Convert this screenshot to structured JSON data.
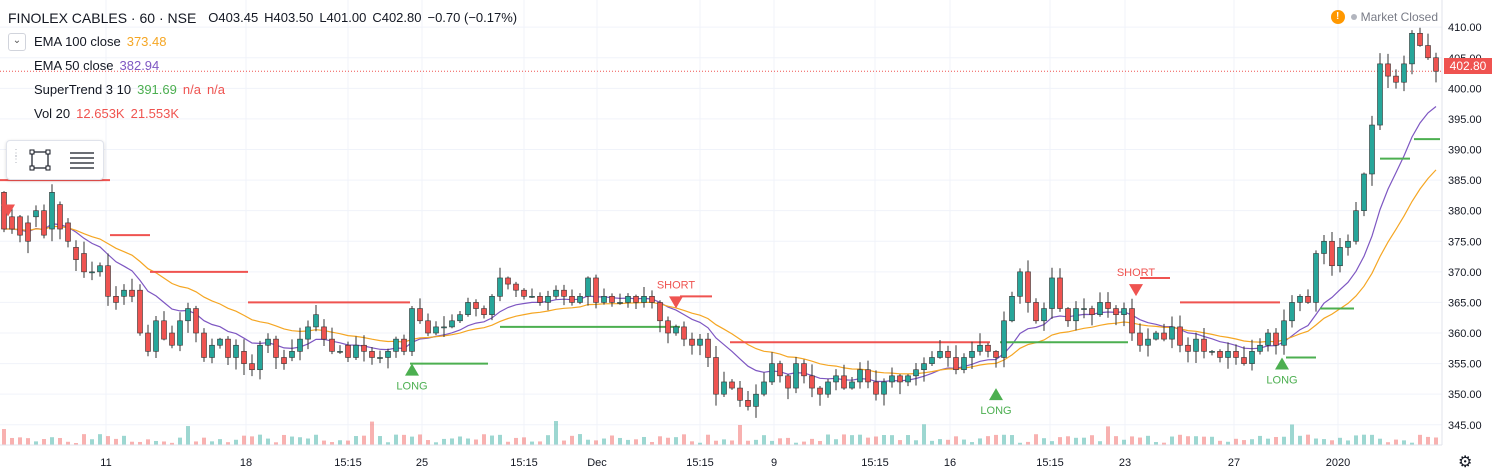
{
  "header": {
    "symbol": "FINOLEX CABLES · 60 · NSE",
    "open": "O403.45",
    "high": "H403.50",
    "low": "L401.00",
    "close": "C402.80",
    "change": "−0.70 (−0.17%)"
  },
  "indicators": [
    {
      "name": "EMA 100 close",
      "values": [
        "373.48"
      ],
      "color": "#f5a623"
    },
    {
      "name": "EMA 50 close",
      "values": [
        "382.94"
      ],
      "color": "#7e57c2"
    },
    {
      "name": "SuperTrend 3 10",
      "values": [
        "391.69",
        "n/a",
        "n/a"
      ],
      "colors": [
        "#4caf50",
        "#ef5350",
        "#ef5350"
      ]
    },
    {
      "name": "Vol 20",
      "values": [
        "12.653K",
        "21.553K"
      ],
      "colors": [
        "#ef5350",
        "#ef5350"
      ]
    }
  ],
  "market_status": "Market Closed",
  "last_price": "402.80",
  "chart_data": {
    "type": "candlestick",
    "y_ticks": [
      "410.00",
      "405.00",
      "400.00",
      "395.00",
      "390.00",
      "385.00",
      "380.00",
      "375.00",
      "370.00",
      "365.00",
      "360.00",
      "355.00",
      "350.00",
      "345.00"
    ],
    "ylim": [
      343,
      411.5
    ],
    "x_ticks": [
      "11",
      "18",
      "15:15",
      "25",
      "15:15",
      "Dec",
      "15:15",
      "9",
      "15:15",
      "16",
      "15:15",
      "23",
      "27",
      "2020"
    ],
    "bar_count": 248,
    "candles_approx": [
      [
        0,
        383,
        377
      ],
      [
        8,
        379,
        377
      ],
      [
        16,
        379,
        376
      ],
      [
        24,
        378,
        375
      ],
      [
        32,
        379,
        380
      ],
      [
        40,
        380,
        376
      ],
      [
        48,
        377,
        383
      ],
      [
        56,
        381,
        377
      ],
      [
        64,
        378,
        375
      ],
      [
        72,
        374,
        372
      ],
      [
        80,
        373,
        370
      ],
      [
        88,
        370,
        370
      ],
      [
        96,
        370,
        371
      ],
      [
        104,
        371,
        366
      ],
      [
        112,
        366,
        365
      ],
      [
        120,
        366,
        367
      ],
      [
        128,
        367,
        366
      ],
      [
        136,
        367,
        360
      ],
      [
        144,
        360,
        357
      ],
      [
        152,
        357,
        362
      ],
      [
        160,
        362,
        359
      ],
      [
        168,
        360,
        358
      ],
      [
        176,
        358,
        362
      ],
      [
        184,
        362,
        364
      ],
      [
        192,
        364,
        360
      ],
      [
        200,
        360,
        356
      ],
      [
        208,
        356,
        358
      ],
      [
        216,
        358,
        359
      ],
      [
        224,
        359,
        356
      ],
      [
        232,
        356,
        358
      ],
      [
        240,
        357,
        355
      ],
      [
        248,
        355,
        354
      ],
      [
        256,
        354,
        358
      ],
      [
        264,
        358,
        359
      ],
      [
        272,
        359,
        356
      ],
      [
        280,
        356,
        355
      ],
      [
        288,
        356,
        357
      ],
      [
        296,
        357,
        359
      ],
      [
        304,
        359,
        361
      ],
      [
        312,
        361,
        363
      ],
      [
        320,
        361,
        359
      ],
      [
        328,
        359,
        357
      ],
      [
        336,
        357,
        357
      ],
      [
        344,
        358,
        356
      ],
      [
        352,
        356,
        358
      ],
      [
        360,
        358,
        357
      ],
      [
        368,
        357,
        356
      ],
      [
        376,
        356,
        356
      ],
      [
        384,
        356,
        357
      ],
      [
        392,
        357,
        359
      ],
      [
        400,
        359,
        357
      ],
      [
        408,
        357,
        364
      ],
      [
        416,
        364,
        362
      ],
      [
        424,
        362,
        360
      ],
      [
        432,
        360,
        361
      ],
      [
        440,
        361,
        361
      ],
      [
        448,
        361,
        362
      ],
      [
        456,
        362,
        363
      ],
      [
        464,
        363,
        365
      ],
      [
        472,
        365,
        364
      ],
      [
        480,
        364,
        363
      ],
      [
        488,
        363,
        366
      ],
      [
        496,
        366,
        369
      ],
      [
        504,
        369,
        368
      ],
      [
        512,
        368,
        367
      ],
      [
        520,
        367,
        366
      ],
      [
        528,
        366,
        366
      ],
      [
        536,
        366,
        365
      ],
      [
        544,
        365,
        366
      ],
      [
        552,
        366,
        367
      ],
      [
        560,
        367,
        366
      ],
      [
        568,
        366,
        365
      ],
      [
        576,
        365,
        366
      ],
      [
        584,
        366,
        369
      ],
      [
        592,
        369,
        365
      ],
      [
        600,
        365,
        366
      ],
      [
        608,
        366,
        365
      ],
      [
        616,
        365,
        365
      ],
      [
        624,
        365,
        366
      ],
      [
        632,
        366,
        365
      ],
      [
        640,
        365,
        366
      ],
      [
        648,
        366,
        365
      ],
      [
        656,
        365,
        362
      ],
      [
        664,
        362,
        360
      ],
      [
        672,
        360,
        361
      ],
      [
        680,
        361,
        359
      ],
      [
        688,
        359,
        358
      ],
      [
        696,
        358,
        359
      ],
      [
        704,
        359,
        356
      ],
      [
        712,
        356,
        350
      ],
      [
        720,
        350,
        352
      ],
      [
        728,
        352,
        351
      ],
      [
        736,
        351,
        349
      ],
      [
        744,
        349,
        348
      ],
      [
        752,
        348,
        350
      ],
      [
        760,
        350,
        352
      ],
      [
        768,
        352,
        355
      ],
      [
        776,
        355,
        353
      ],
      [
        784,
        353,
        351
      ],
      [
        792,
        351,
        355
      ],
      [
        800,
        355,
        353
      ],
      [
        808,
        353,
        351
      ],
      [
        816,
        351,
        350
      ],
      [
        824,
        350,
        352
      ],
      [
        832,
        352,
        353
      ],
      [
        840,
        353,
        351
      ],
      [
        848,
        351,
        352
      ],
      [
        856,
        352,
        354
      ],
      [
        864,
        354,
        352
      ],
      [
        872,
        352,
        350
      ],
      [
        880,
        350,
        352
      ],
      [
        888,
        352,
        353
      ],
      [
        896,
        353,
        352
      ],
      [
        904,
        352,
        353
      ],
      [
        912,
        353,
        354
      ],
      [
        920,
        354,
        355
      ],
      [
        928,
        355,
        356
      ],
      [
        936,
        356,
        357
      ],
      [
        944,
        357,
        356
      ],
      [
        952,
        356,
        354
      ],
      [
        960,
        354,
        356
      ],
      [
        968,
        356,
        357
      ],
      [
        976,
        357,
        358
      ],
      [
        984,
        358,
        357
      ],
      [
        992,
        357,
        356
      ],
      [
        1000,
        356,
        362
      ],
      [
        1008,
        362,
        366
      ],
      [
        1016,
        366,
        370
      ],
      [
        1024,
        370,
        365
      ],
      [
        1032,
        365,
        362
      ],
      [
        1040,
        362,
        364
      ],
      [
        1048,
        364,
        369
      ],
      [
        1056,
        369,
        364
      ],
      [
        1064,
        364,
        362
      ],
      [
        1072,
        362,
        364
      ],
      [
        1080,
        364,
        364
      ],
      [
        1088,
        364,
        363
      ],
      [
        1096,
        363,
        365
      ],
      [
        1104,
        365,
        364
      ],
      [
        1112,
        364,
        363
      ],
      [
        1120,
        363,
        364
      ],
      [
        1128,
        364,
        360
      ],
      [
        1136,
        360,
        358
      ],
      [
        1144,
        358,
        359
      ],
      [
        1152,
        359,
        360
      ],
      [
        1160,
        360,
        359
      ],
      [
        1168,
        359,
        361
      ],
      [
        1176,
        361,
        358
      ],
      [
        1184,
        358,
        357
      ],
      [
        1192,
        357,
        359
      ],
      [
        1200,
        359,
        357
      ],
      [
        1208,
        357,
        357
      ],
      [
        1216,
        357,
        356
      ],
      [
        1224,
        356,
        357
      ],
      [
        1232,
        357,
        356
      ],
      [
        1240,
        356,
        355
      ],
      [
        1248,
        355,
        357
      ],
      [
        1256,
        357,
        358
      ],
      [
        1264,
        358,
        360
      ],
      [
        1272,
        360,
        358
      ],
      [
        1280,
        358,
        362
      ],
      [
        1288,
        362,
        365
      ],
      [
        1296,
        365,
        366
      ],
      [
        1304,
        366,
        365
      ],
      [
        1312,
        365,
        373
      ],
      [
        1320,
        373,
        375
      ],
      [
        1328,
        375,
        371
      ],
      [
        1336,
        371,
        374
      ],
      [
        1344,
        374,
        375
      ],
      [
        1352,
        375,
        380
      ],
      [
        1360,
        380,
        386
      ],
      [
        1368,
        386,
        394
      ],
      [
        1376,
        394,
        404
      ],
      [
        1384,
        404,
        402
      ],
      [
        1392,
        402,
        401
      ],
      [
        1400,
        401,
        404
      ],
      [
        1408,
        404,
        409
      ],
      [
        1416,
        409,
        407
      ],
      [
        1424,
        407,
        405
      ],
      [
        1432,
        405,
        402.8
      ]
    ]
  }
}
